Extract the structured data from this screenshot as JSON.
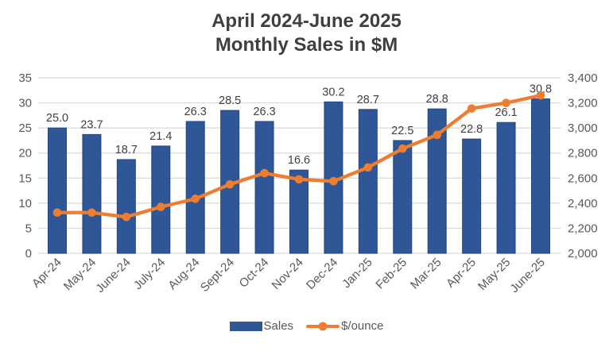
{
  "title": {
    "line1": "April 2024-June 2025",
    "line2": "Monthly Sales in $M"
  },
  "colors": {
    "bar": "#2f5696",
    "bar_edge": "#27477c",
    "line": "#ed7d31",
    "grid": "#d9d9d9",
    "axis_text": "#595959",
    "data_label_text": "#404040",
    "title_text": "#3f3f3f"
  },
  "chart_data": {
    "type": "combo",
    "title": "April 2024-June 2025 Monthly Sales in $M",
    "grid": "horizontal",
    "legend_position": "bottom",
    "categories": [
      "Apr-24",
      "May-24",
      "June-24",
      "July-24",
      "Aug-24",
      "Sept-24",
      "Oct-24",
      "Nov-24",
      "Dec-24",
      "Jan-25",
      "Feb-25",
      "Mar-25",
      "Apr-25",
      "May-25",
      "June-25"
    ],
    "series": [
      {
        "name": "Sales",
        "type": "bar",
        "axis": "left",
        "color": "#2f5696",
        "values": [
          25.0,
          23.7,
          18.7,
          21.4,
          26.3,
          28.5,
          26.3,
          16.6,
          30.2,
          28.7,
          22.5,
          28.8,
          22.8,
          26.1,
          30.8
        ],
        "data_labels_visible": true
      },
      {
        "name": "$/ounce",
        "type": "line",
        "axis": "right",
        "color": "#ed7d31",
        "values": [
          2325,
          2325,
          2290,
          2370,
          2435,
          2550,
          2640,
          2590,
          2575,
          2685,
          2835,
          2945,
          3155,
          3200,
          3260
        ],
        "data_labels_visible": false
      }
    ],
    "left_axis": {
      "min": 0,
      "max": 35,
      "step": 5,
      "ticks": [
        "35",
        "30",
        "25",
        "20",
        "15",
        "10",
        "5",
        "0"
      ]
    },
    "right_axis": {
      "min": 2000,
      "max": 3400,
      "step": 200,
      "ticks": [
        "3,400",
        "3,200",
        "3,000",
        "2,800",
        "2,600",
        "2,400",
        "2,200",
        "2,000"
      ]
    }
  },
  "legend": {
    "items": [
      {
        "label": "Sales",
        "marker": "bar-swatch"
      },
      {
        "label": "$/ounce",
        "marker": "line-dot-swatch"
      }
    ]
  }
}
